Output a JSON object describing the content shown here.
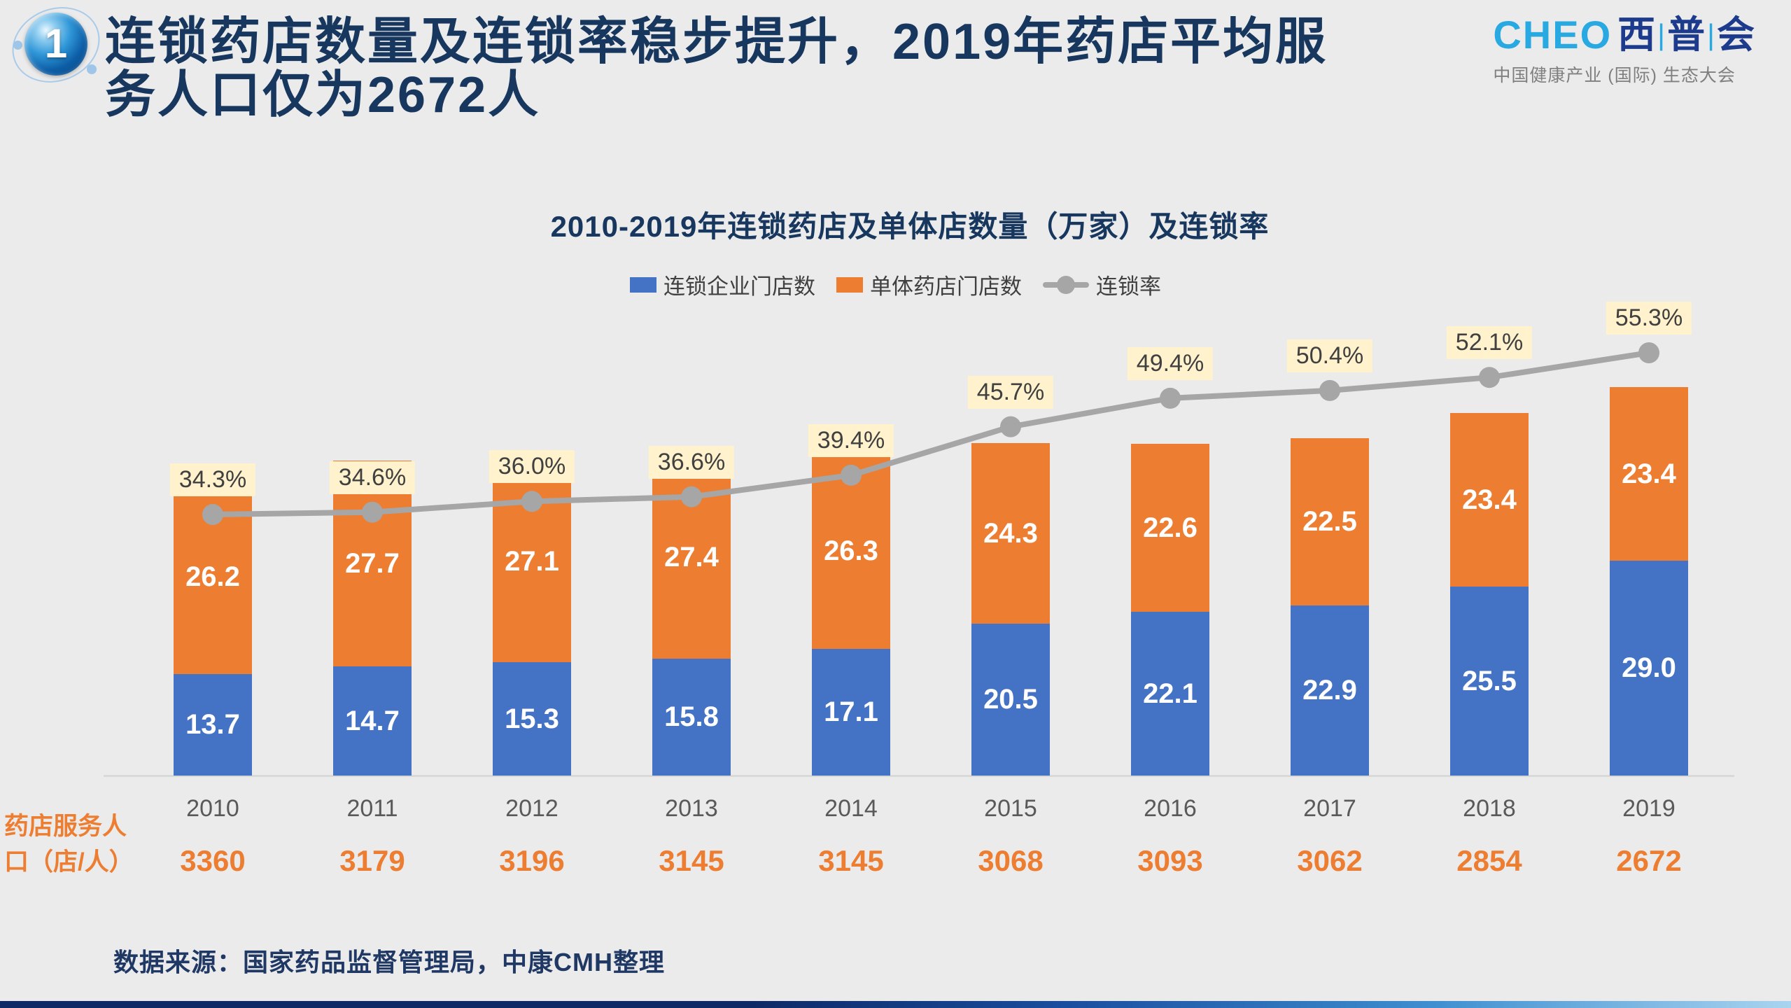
{
  "slide": {
    "badge_number": "1",
    "title": "连锁药店数量及连锁率稳步提升，2019年药店平均服\n务人口仅为2672人",
    "source_note": "数据来源：国家药品监督管理局，中康CMH整理"
  },
  "logo": {
    "wordmark_latin": "CHEO",
    "wordmark_cn": [
      "西",
      "普",
      "会"
    ],
    "separator": "|",
    "subtitle": "中国健康产业 (国际) 生态大会"
  },
  "colors": {
    "background": "#EBEBEB",
    "title_navy": "#17375E",
    "bar_blue": "#4472C4",
    "bar_orange": "#ED7D31",
    "line_gray": "#A6A6A6",
    "pct_label_bg": "#FFF2CC",
    "pct_label_text": "#404040",
    "year_text": "#595959",
    "service_orange": "#ED7D31",
    "logo_cyan": "#29A9E1",
    "logo_navy": "#1C3B8D"
  },
  "chart_data": {
    "type": "combo-stacked-bar-line",
    "title": "2010-2019年连锁药店及单体店数量（万家）及连锁率",
    "categories": [
      "2010",
      "2011",
      "2012",
      "2013",
      "2014",
      "2015",
      "2016",
      "2017",
      "2018",
      "2019"
    ],
    "unit": "万家",
    "grid": false,
    "legend_position": "top",
    "series": [
      {
        "name": "连锁企业门店数",
        "type": "bar",
        "stack": "stores",
        "color": "#4472C4",
        "values": [
          13.7,
          14.7,
          15.3,
          15.8,
          17.1,
          20.5,
          22.1,
          22.9,
          25.5,
          29.0
        ],
        "labels": [
          "13.7",
          "14.7",
          "15.3",
          "15.8",
          "17.1",
          "20.5",
          "22.1",
          "22.9",
          "25.5",
          "29.0"
        ]
      },
      {
        "name": "单体药店门店数",
        "type": "bar",
        "stack": "stores",
        "color": "#ED7D31",
        "values": [
          26.2,
          27.7,
          27.1,
          27.4,
          26.3,
          24.3,
          22.6,
          22.5,
          23.4,
          23.4
        ],
        "labels": [
          "26.2",
          "27.7",
          "27.1",
          "27.4",
          "26.3",
          "24.3",
          "22.6",
          "22.5",
          "23.4",
          "23.4"
        ]
      },
      {
        "name": "连锁率",
        "type": "line",
        "color": "#A6A6A6",
        "values": [
          34.3,
          34.6,
          36.0,
          36.6,
          39.4,
          45.7,
          49.4,
          50.4,
          52.1,
          55.3
        ],
        "labels": [
          "34.3%",
          "34.6%",
          "36.0%",
          "36.6%",
          "39.4%",
          "45.7%",
          "49.4%",
          "50.4%",
          "52.1%",
          "55.3%"
        ]
      }
    ],
    "extra_row": {
      "label": "药店服务人口（店/人）",
      "color": "#ED7D31",
      "values": [
        "3360",
        "3179",
        "3196",
        "3145",
        "3145",
        "3068",
        "3093",
        "3062",
        "2854",
        "2672"
      ]
    }
  }
}
